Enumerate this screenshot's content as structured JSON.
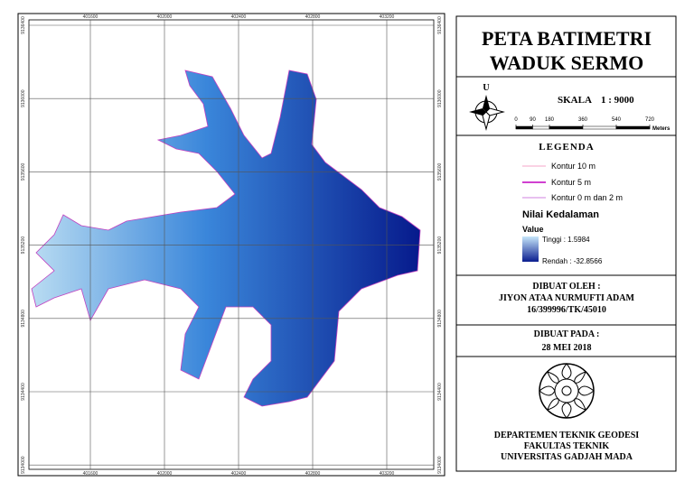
{
  "map": {
    "x_ticks": [
      401600,
      402000,
      402400,
      402800,
      403200
    ],
    "y_ticks": [
      9136400,
      9136000,
      9135600,
      9135200,
      9134800,
      9134400,
      9134000
    ]
  },
  "title": [
    "PETA BATIMETRI",
    "WADUK SERMO"
  ],
  "scale": {
    "north": "U",
    "label": "SKALA",
    "ratio": "1 : 9000",
    "bar_ticks": [
      0,
      90,
      180,
      360,
      540,
      720
    ],
    "unit": "Meters"
  },
  "legend": {
    "title": "LEGENDA",
    "items": [
      "Kontur 10 m",
      "Kontur 5 m",
      "Kontur 0 m dan 2 m"
    ],
    "raster_title": "Nilai Kedalaman",
    "raster_field": "Value",
    "high": "Tinggi : 1.5984",
    "low": "Rendah : -32.8566"
  },
  "made_by": {
    "label": "DIBUAT OLEH :",
    "name": "JIYON ATAA NURMUFTI ADAM",
    "id": "16/399996/TK/45010"
  },
  "made_on": {
    "label": "DIBUAT PADA :",
    "date": "28 MEI 2018"
  },
  "institution": [
    "DEPARTEMEN TEKNIK GEODESI",
    "FAKULTAS TEKNIK",
    "UNIVERSITAS GADJAH MADA"
  ]
}
